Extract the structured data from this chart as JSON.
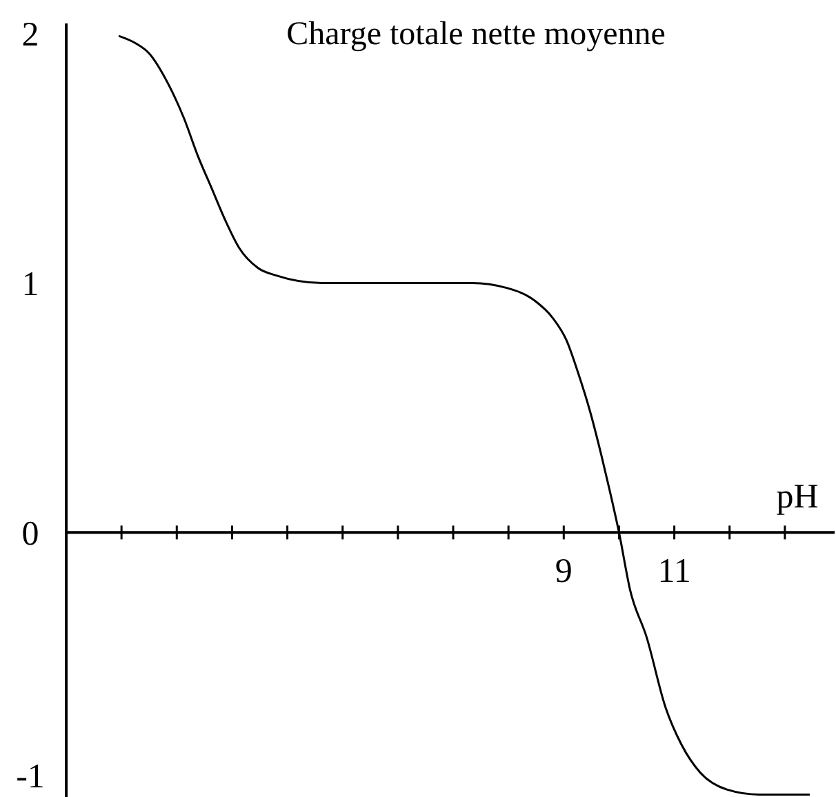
{
  "chart_data": {
    "type": "line",
    "title": "Charge totale nette moyenne",
    "xlabel": "pH",
    "x": [
      0.95,
      1.26,
      1.5,
      1.84,
      2.13,
      2.38,
      2.63,
      2.88,
      3.13,
      3.47,
      3.8,
      4.63,
      6.3,
      7.34,
      7.97,
      8.47,
      8.8,
      9.05,
      9.26,
      9.47,
      9.68,
      9.84,
      10.0,
      10.2,
      10.5,
      10.84,
      11.13,
      11.46,
      11.95,
      12.53,
      13.45
    ],
    "series": [
      {
        "color": "#000000",
        "values": [
          1.99,
          1.96,
          1.92,
          1.8,
          1.66,
          1.51,
          1.38,
          1.25,
          1.14,
          1.06,
          1.03,
          1.0,
          1.0,
          1.0,
          0.98,
          0.93,
          0.86,
          0.77,
          0.64,
          0.49,
          0.31,
          0.16,
          0,
          -0.23,
          -0.42,
          -0.7,
          -0.85,
          -0.96,
          -1.03,
          -1.05,
          -1.05
        ]
      }
    ],
    "xlim": [
      0,
      13.9
    ],
    "ylim": [
      -1.06,
      2.04
    ],
    "xticks": [
      {
        "value": 1,
        "label": null
      },
      {
        "value": 2,
        "label": null
      },
      {
        "value": 3,
        "label": null
      },
      {
        "value": 4,
        "label": null
      },
      {
        "value": 5,
        "label": null
      },
      {
        "value": 6,
        "label": null
      },
      {
        "value": 7,
        "label": null
      },
      {
        "value": 8,
        "label": null
      },
      9,
      {
        "value": 10,
        "label": null
      },
      11,
      {
        "value": 12,
        "label": null
      },
      {
        "value": 13,
        "label": null
      }
    ],
    "yticks": [
      -1,
      0,
      1,
      2
    ],
    "grid": false,
    "marker": "none",
    "line_style": "solid"
  }
}
